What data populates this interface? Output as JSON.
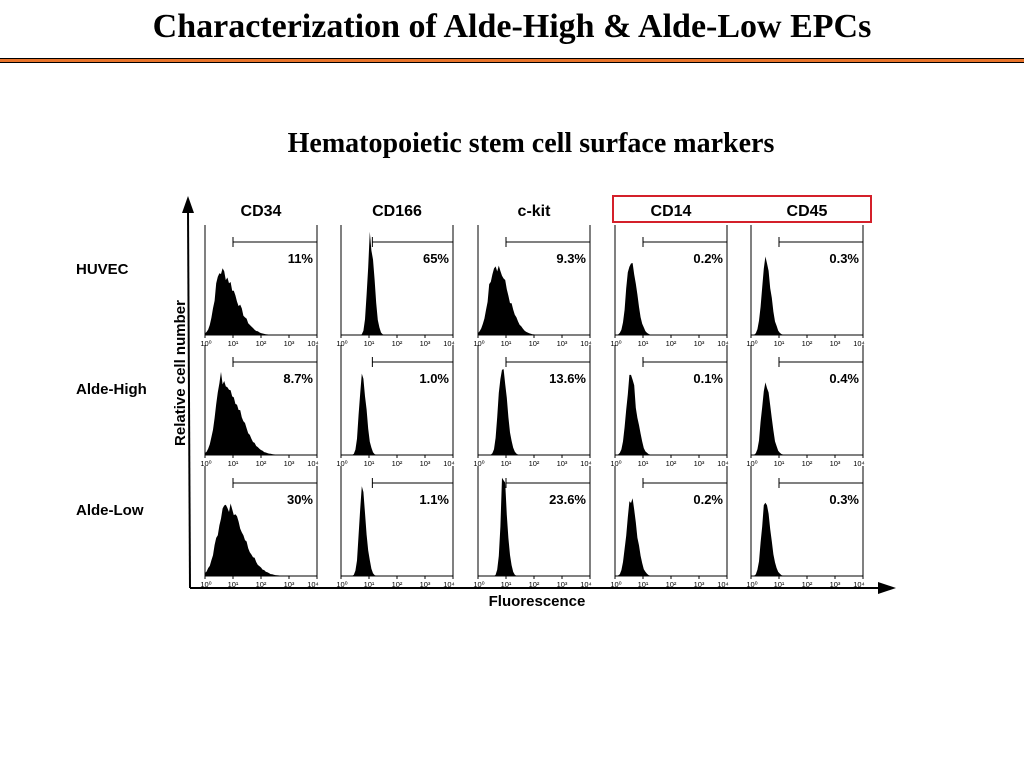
{
  "slide": {
    "title": "Characterization of Alde-High & Alde-Low EPCs",
    "subtitle": "Hematopoietic stem cell surface markers"
  },
  "colors": {
    "title_rule": "#e8732a",
    "highlight_box": "#d4202a",
    "histogram_fill": "#000000"
  },
  "chart_data": {
    "type": "histogram-grid",
    "xlabel": "Fluorescence",
    "ylabel": "Relative cell number",
    "x_scale": "log",
    "x_ticks": [
      "10⁰",
      "10¹",
      "10²",
      "10³",
      "10⁴"
    ],
    "columns": [
      "CD34",
      "CD166",
      "c-kit",
      "CD14",
      "CD45"
    ],
    "highlighted_columns": [
      "CD14",
      "CD45"
    ],
    "rows": [
      "HUVEC",
      "Alde-High",
      "Alde-Low"
    ],
    "values": [
      [
        "11%",
        "65%",
        "9.3%",
        "0.2%",
        "0.3%"
      ],
      [
        "8.7%",
        "1.0%",
        "13.6%",
        "0.1%",
        "0.4%"
      ],
      [
        "30%",
        "1.1%",
        "23.6%",
        "0.2%",
        "0.3%"
      ]
    ]
  }
}
